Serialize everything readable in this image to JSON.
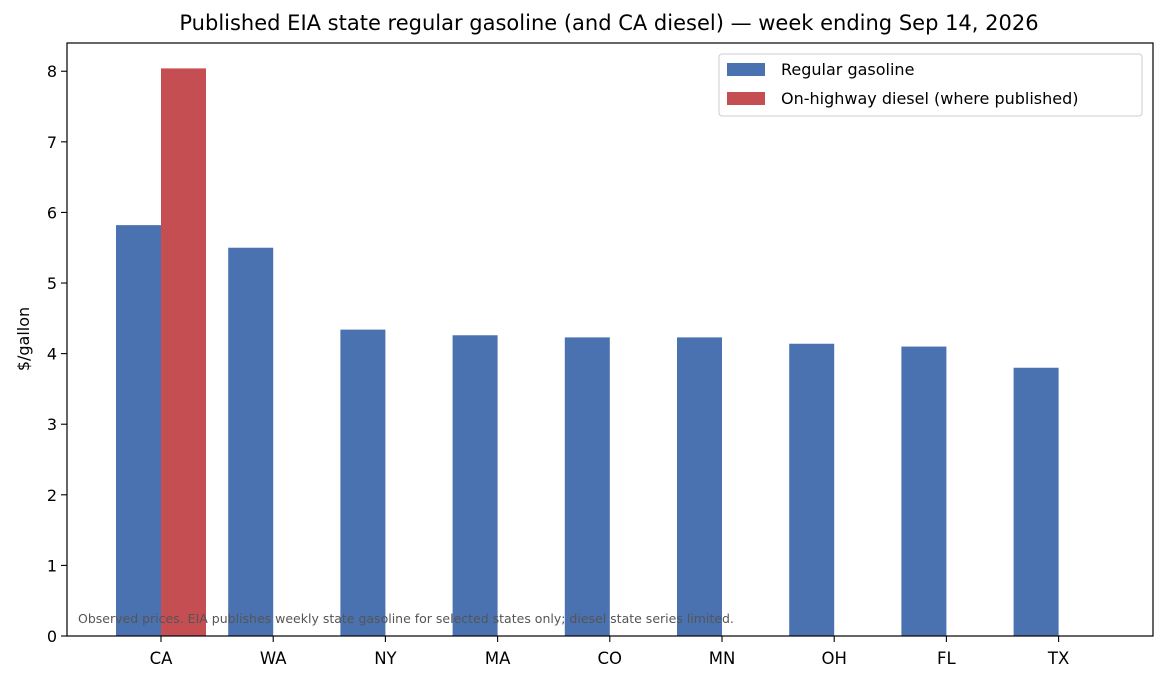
{
  "chart_data": {
    "type": "bar",
    "title": "Published EIA state regular gasoline (and CA diesel) — week ending Sep 14, 2026",
    "xlabel": "",
    "ylabel": "$/gallon",
    "ylim": [
      0,
      8.4
    ],
    "yticks": [
      0,
      1,
      2,
      3,
      4,
      5,
      6,
      7,
      8
    ],
    "categories": [
      "CA",
      "WA",
      "NY",
      "MA",
      "CO",
      "MN",
      "OH",
      "FL",
      "TX"
    ],
    "series": [
      {
        "name": "Regular gasoline",
        "color": "#4a72b0",
        "values": [
          5.82,
          5.5,
          4.34,
          4.26,
          4.23,
          4.23,
          4.14,
          4.1,
          3.8
        ]
      },
      {
        "name": "On-highway diesel (where published)",
        "color": "#c44e52",
        "values": [
          8.04,
          null,
          null,
          null,
          null,
          null,
          null,
          null,
          null
        ]
      }
    ],
    "legend_position": "top-right",
    "grid": false,
    "annotation": "Observed prices. EIA publishes weekly state gasoline for selected states only; diesel state series limited."
  }
}
